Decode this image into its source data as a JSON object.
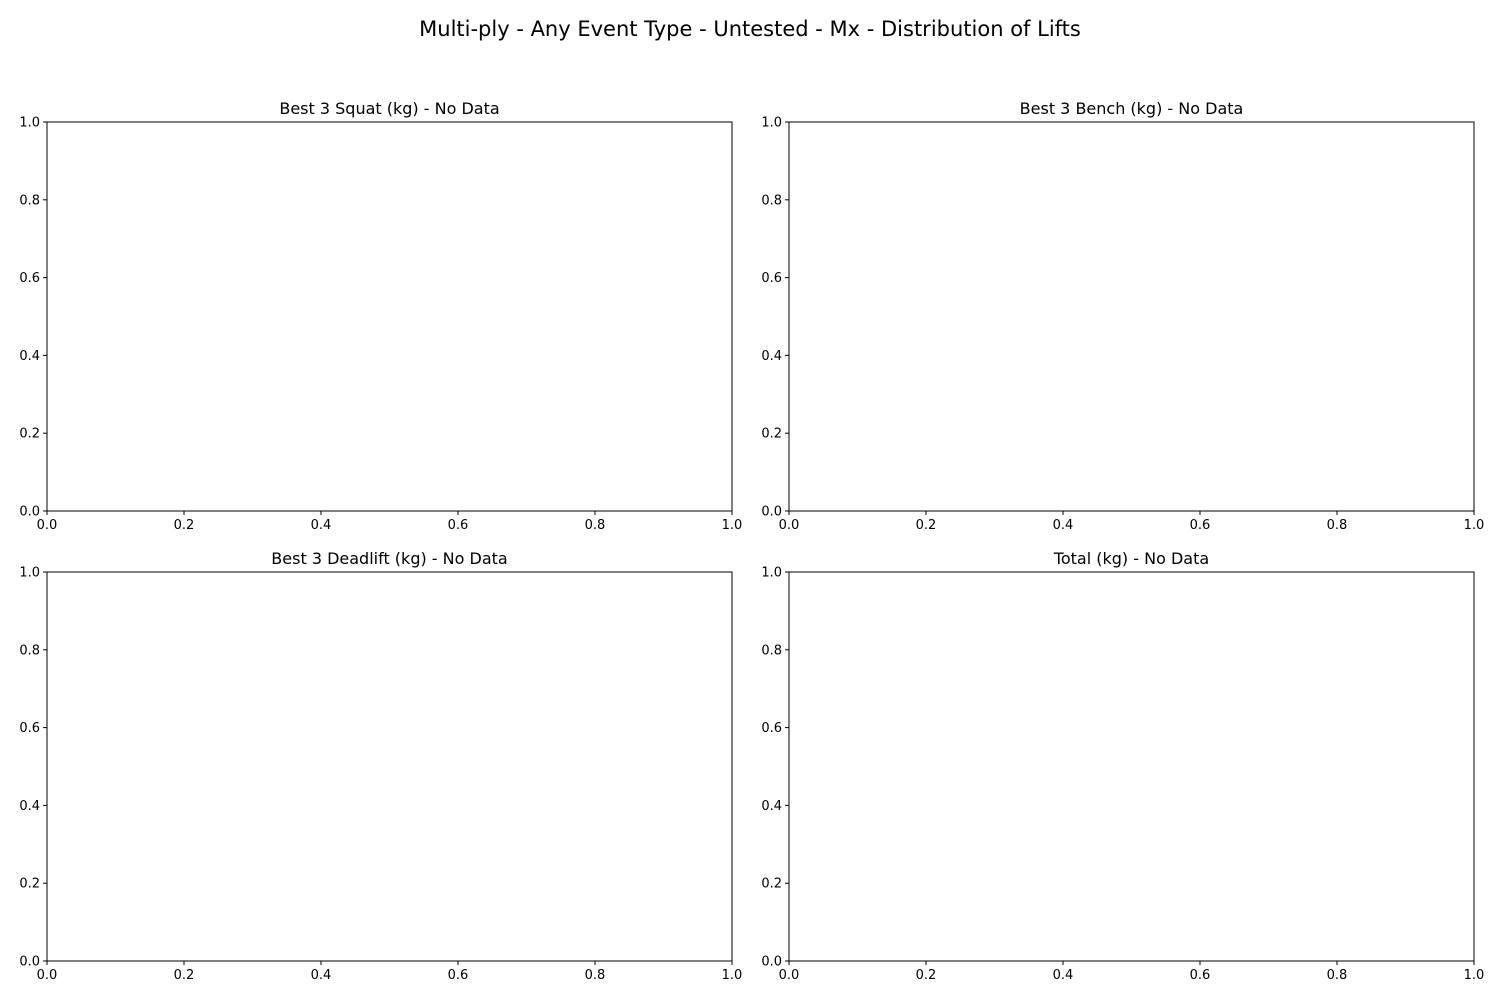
{
  "figure": {
    "title": "Multi-ply - Any Event Type - Untested - Mx - Distribution of Lifts"
  },
  "chart_data": [
    {
      "type": "bar",
      "title": "Best 3 Squat (kg) - No Data",
      "xlabel": "",
      "ylabel": "",
      "xlim": [
        0,
        1
      ],
      "ylim": [
        0,
        1
      ],
      "xticks": [
        "0.0",
        "0.2",
        "0.4",
        "0.6",
        "0.8",
        "1.0"
      ],
      "yticks": [
        "0.0",
        "0.2",
        "0.4",
        "0.6",
        "0.8",
        "1.0"
      ],
      "grid": false,
      "values": []
    },
    {
      "type": "bar",
      "title": "Best 3 Bench (kg) - No Data",
      "xlabel": "",
      "ylabel": "",
      "xlim": [
        0,
        1
      ],
      "ylim": [
        0,
        1
      ],
      "xticks": [
        "0.0",
        "0.2",
        "0.4",
        "0.6",
        "0.8",
        "1.0"
      ],
      "yticks": [
        "0.0",
        "0.2",
        "0.4",
        "0.6",
        "0.8",
        "1.0"
      ],
      "grid": false,
      "values": []
    },
    {
      "type": "bar",
      "title": "Best 3 Deadlift (kg) - No Data",
      "xlabel": "",
      "ylabel": "",
      "xlim": [
        0,
        1
      ],
      "ylim": [
        0,
        1
      ],
      "xticks": [
        "0.0",
        "0.2",
        "0.4",
        "0.6",
        "0.8",
        "1.0"
      ],
      "yticks": [
        "0.0",
        "0.2",
        "0.4",
        "0.6",
        "0.8",
        "1.0"
      ],
      "grid": false,
      "values": []
    },
    {
      "type": "bar",
      "title": "Total (kg) - No Data",
      "xlabel": "",
      "ylabel": "",
      "xlim": [
        0,
        1
      ],
      "ylim": [
        0,
        1
      ],
      "xticks": [
        "0.0",
        "0.2",
        "0.4",
        "0.6",
        "0.8",
        "1.0"
      ],
      "yticks": [
        "0.0",
        "0.2",
        "0.4",
        "0.6",
        "0.8",
        "1.0"
      ],
      "grid": false,
      "values": []
    }
  ]
}
